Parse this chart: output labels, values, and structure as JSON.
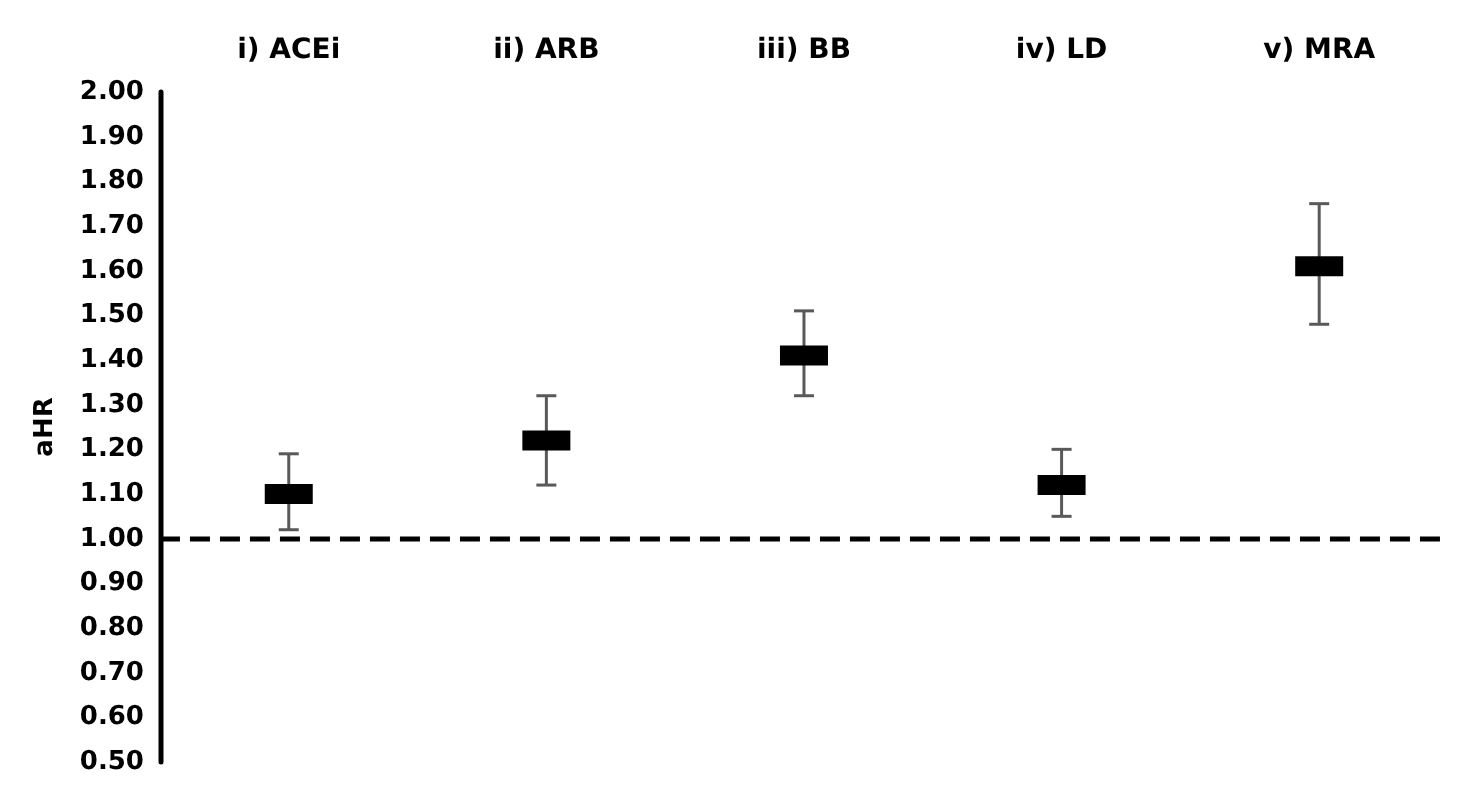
{
  "chart_data": {
    "type": "scatter",
    "ylabel": "aHR",
    "categories": [
      "i) ACEi",
      "ii) ARB",
      "iii) BB",
      "iv) LD",
      "v) MRA"
    ],
    "values": [
      1.1,
      1.22,
      1.41,
      1.12,
      1.61
    ],
    "errors": [
      [
        1.02,
        1.19
      ],
      [
        1.12,
        1.32
      ],
      [
        1.32,
        1.51
      ],
      [
        1.05,
        1.2
      ],
      [
        1.48,
        1.75
      ]
    ],
    "color": "#000000",
    "marker": "square",
    "ylim": [
      0.5,
      2.0
    ],
    "yticks": [
      {
        "value": 0.5,
        "label": "0.50"
      },
      {
        "value": 0.6,
        "label": "0.60"
      },
      {
        "value": 0.7,
        "label": "0.70"
      },
      {
        "value": 0.8,
        "label": "0.80"
      },
      {
        "value": 0.9,
        "label": "0.90"
      },
      {
        "value": 1.0,
        "label": "1.00"
      },
      {
        "value": 1.1,
        "label": "1.10"
      },
      {
        "value": 1.2,
        "label": "1.20"
      },
      {
        "value": 1.3,
        "label": "1.30"
      },
      {
        "value": 1.4,
        "label": "1.40"
      },
      {
        "value": 1.5,
        "label": "1.50"
      },
      {
        "value": 1.6,
        "label": "1.60"
      },
      {
        "value": 1.7,
        "label": "1.70"
      },
      {
        "value": 1.8,
        "label": "1.80"
      },
      {
        "value": 1.9,
        "label": "1.90"
      },
      {
        "value": 2.0,
        "label": "2.00"
      }
    ],
    "ref_lines": [
      {
        "axis": "y",
        "value": 1.0,
        "color": "#000000",
        "line_style": "dashed"
      }
    ],
    "grid": false
  }
}
